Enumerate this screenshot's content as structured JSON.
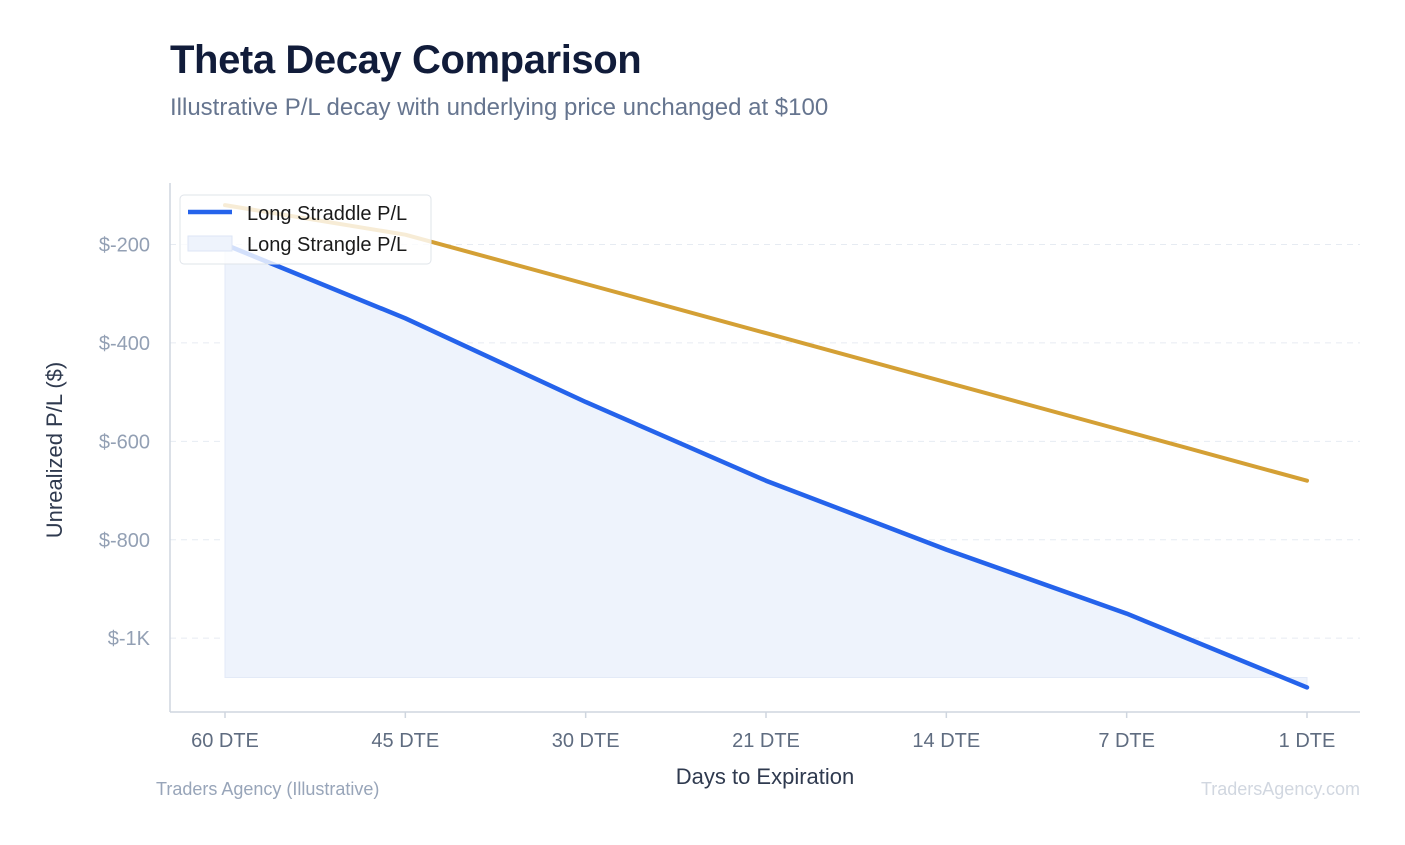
{
  "header": {
    "title": "Theta Decay Comparison",
    "subtitle": "Illustrative P/L decay with underlying price unchanged at $100"
  },
  "footer": {
    "left": "Traders Agency (Illustrative)",
    "right": "TradersAgency.com"
  },
  "chart_data": {
    "type": "line",
    "title": "Theta Decay Comparison",
    "subtitle": "Illustrative P/L decay with underlying price unchanged at $100",
    "xlabel": "Days to Expiration",
    "ylabel": "Unrealized P/L ($)",
    "categories": [
      "60 DTE",
      "45 DTE",
      "30 DTE",
      "21 DTE",
      "14 DTE",
      "7 DTE",
      "1 DTE"
    ],
    "y_ticks": [
      -200,
      -400,
      -600,
      -800,
      -1000
    ],
    "y_tick_labels": [
      "$-200",
      "$-400",
      "$-600",
      "$-800",
      "$-1K"
    ],
    "ylim": [
      -1150,
      -75
    ],
    "grid": "horizontal dashed",
    "legend_position": "top-left",
    "series": [
      {
        "name": "Long Straddle P/L",
        "values": [
          -200,
          -350,
          -520,
          -680,
          -820,
          -950,
          -1100
        ],
        "color": "#2563eb",
        "style": "line with filled area",
        "fill_color": "#eef3fc",
        "fill_baseline": -1080
      },
      {
        "name": "Long Strangle P/L",
        "values": [
          -120,
          -180,
          -280,
          -380,
          -480,
          -580,
          -680
        ],
        "color": "#d4a035",
        "style": "line"
      }
    ],
    "legend_swatches": [
      {
        "series": "Long Straddle P/L",
        "swatch": "line",
        "color": "#2563eb"
      },
      {
        "series": "Long Strangle P/L",
        "swatch": "filled box",
        "color": "#eef3fc"
      }
    ]
  }
}
